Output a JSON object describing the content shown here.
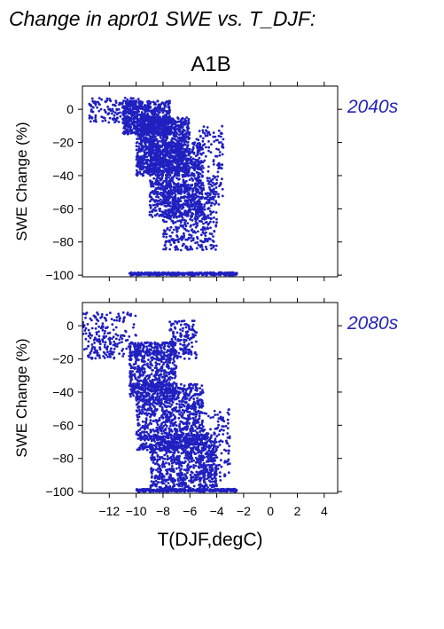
{
  "title": "Change in apr01 SWE vs. T_DJF:",
  "subtitle": "A1B",
  "colors": {
    "points": "#2020c0",
    "period_label": "#2424b8"
  },
  "chart_data": [
    {
      "type": "scatter",
      "panel_label": "2040s",
      "xlabel": "T(DJF,degC)",
      "ylabel": "SWE Change (%)",
      "xlim": [
        -14,
        5
      ],
      "ylim": [
        -101,
        14
      ],
      "xticks": [
        -12,
        -10,
        -8,
        -6,
        -4,
        -2,
        0,
        2,
        4
      ],
      "yticks": [
        0,
        -20,
        -40,
        -60,
        -80,
        -100
      ],
      "x_tick_labels_shown": false,
      "point_color": "#2020c0",
      "clusters": [
        {
          "x": [
            -11,
            -7.5
          ],
          "y": [
            -15,
            5
          ],
          "weight": 600
        },
        {
          "x": [
            -10,
            -6
          ],
          "y": [
            -40,
            -5
          ],
          "weight": 1100
        },
        {
          "x": [
            -9,
            -5
          ],
          "y": [
            -65,
            -20
          ],
          "weight": 900
        },
        {
          "x": [
            -8,
            -4
          ],
          "y": [
            -85,
            -45
          ],
          "weight": 450
        },
        {
          "x": [
            -13.5,
            -9
          ],
          "y": [
            -8,
            7
          ],
          "weight": 160
        },
        {
          "x": [
            -5.5,
            -3.5
          ],
          "y": [
            -60,
            -10
          ],
          "weight": 140
        }
      ],
      "floor_band": {
        "x": [
          -10.5,
          -2.5
        ],
        "y": -100,
        "weight": 330
      }
    },
    {
      "type": "scatter",
      "panel_label": "2080s",
      "xlabel": "T(DJF,degC)",
      "ylabel": "SWE Change (%)",
      "xlim": [
        -14,
        5
      ],
      "ylim": [
        -101,
        14
      ],
      "xticks": [
        -12,
        -10,
        -8,
        -6,
        -4,
        -2,
        0,
        2,
        4
      ],
      "xtick_labels": [
        "−12",
        "−10",
        "−8",
        "−6",
        "−4",
        "−2",
        "0",
        "2",
        "4"
      ],
      "yticks": [
        0,
        -20,
        -40,
        -60,
        -80,
        -100
      ],
      "x_tick_labels_shown": true,
      "point_color": "#2020c0",
      "clusters": [
        {
          "x": [
            -14,
            -10
          ],
          "y": [
            -20,
            8
          ],
          "weight": 220
        },
        {
          "x": [
            -10.5,
            -7
          ],
          "y": [
            -45,
            -10
          ],
          "weight": 650
        },
        {
          "x": [
            -10,
            -5
          ],
          "y": [
            -75,
            -35
          ],
          "weight": 950
        },
        {
          "x": [
            -9,
            -4
          ],
          "y": [
            -98,
            -65
          ],
          "weight": 800
        },
        {
          "x": [
            -7.5,
            -5.5
          ],
          "y": [
            -20,
            3
          ],
          "weight": 160
        },
        {
          "x": [
            -5,
            -3
          ],
          "y": [
            -95,
            -50
          ],
          "weight": 130
        }
      ],
      "floor_band": {
        "x": [
          -10,
          -2.5
        ],
        "y": -100,
        "weight": 330
      }
    }
  ]
}
